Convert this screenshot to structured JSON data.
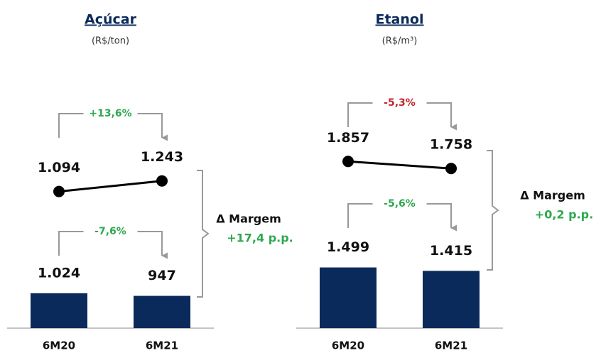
{
  "chart_data": [
    {
      "type": "bar_line",
      "title": "Açúcar",
      "subtitle": "(R$/ton)",
      "categories": [
        "6M20",
        "6M21"
      ],
      "series": [
        {
          "type": "bar",
          "color": "#0a2a5c",
          "values": [
            1024,
            947
          ],
          "value_labels": [
            "1.024",
            "947"
          ]
        },
        {
          "type": "line",
          "color": "#000000",
          "values": [
            1094,
            1243
          ],
          "value_labels": [
            "1.094",
            "1.243"
          ]
        }
      ],
      "changes": [
        {
          "label": "+13,6%",
          "color": "#2ea84f"
        },
        {
          "label": "-7,6%",
          "color": "#2ea84f"
        }
      ],
      "margin": {
        "label": "Δ Margem",
        "value": "+17,4 p.p.",
        "color": "#2ea84f"
      }
    },
    {
      "type": "bar_line",
      "title": "Etanol",
      "subtitle": "(R$/m³)",
      "categories": [
        "6M20",
        "6M21"
      ],
      "series": [
        {
          "type": "bar",
          "color": "#0a2a5c",
          "values": [
            1499,
            1415
          ],
          "value_labels": [
            "1.499",
            "1.415"
          ]
        },
        {
          "type": "line",
          "color": "#000000",
          "values": [
            1857,
            1758
          ],
          "value_labels": [
            "1.857",
            "1.758"
          ]
        }
      ],
      "changes": [
        {
          "label": "-5,3%",
          "color": "#c0282d"
        },
        {
          "label": "-5,6%",
          "color": "#2ea84f"
        }
      ],
      "margin": {
        "label": "Δ Margem",
        "value": "+0,2 p.p.",
        "color": "#2ea84f"
      }
    }
  ]
}
